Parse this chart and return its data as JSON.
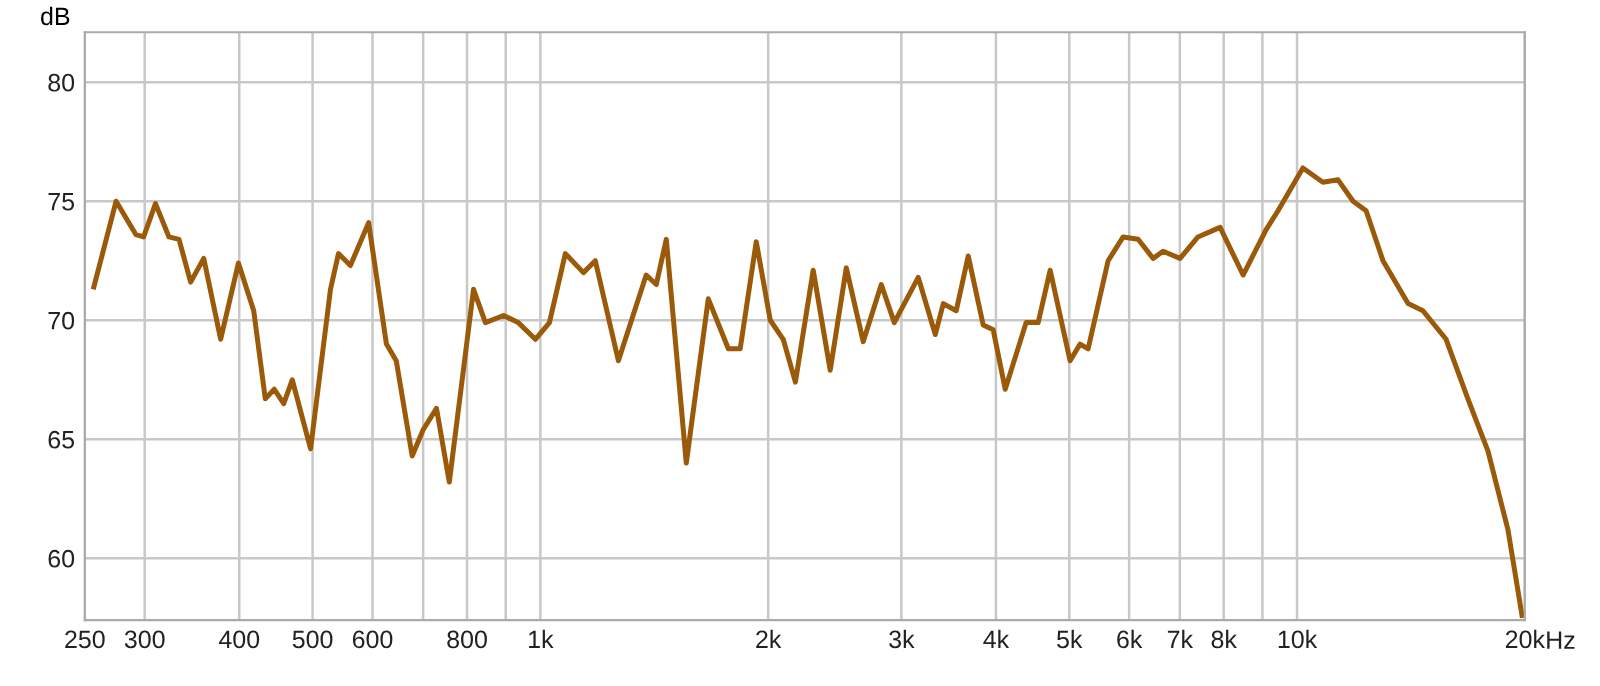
{
  "chart_data": {
    "type": "line",
    "ylabel": "dB",
    "log": "x",
    "grid": true,
    "marker": "none",
    "line_style": "solid",
    "xlim": [
      250,
      20000
    ],
    "ylim": [
      57.4,
      82.1
    ],
    "xticks": [
      250,
      300,
      400,
      500,
      600,
      {
        "value": 700,
        "label": null
      },
      800,
      {
        "value": 900,
        "label": null
      },
      {
        "value": 1000,
        "label": "1k"
      },
      {
        "value": 2000,
        "label": "2k"
      },
      {
        "value": 3000,
        "label": "3k"
      },
      {
        "value": 4000,
        "label": "4k"
      },
      {
        "value": 5000,
        "label": "5k"
      },
      {
        "value": 6000,
        "label": "6k"
      },
      {
        "value": 7000,
        "label": "7k"
      },
      {
        "value": 8000,
        "label": "8k"
      },
      {
        "value": 9000,
        "label": null
      },
      {
        "value": 10000,
        "label": "10k"
      },
      {
        "value": 20000,
        "label": "20k"
      }
    ],
    "xlabel": "Hz",
    "yticks": [
      60,
      65,
      70,
      75,
      80
    ],
    "series": [
      {
        "color": "#9a5a0a",
        "x": [
          257,
          275,
          292,
          299,
          310,
          323,
          333,
          345,
          359,
          378,
          399,
          418,
          433,
          445,
          458,
          470,
          497,
          528,
          541,
          561,
          593,
          626,
          645,
          677,
          700,
          729,
          758,
          816,
          846,
          894,
          935,
          985,
          1028,
          1079,
          1140,
          1182,
          1268,
          1380,
          1423,
          1467,
          1559,
          1667,
          1772,
          1837,
          1929,
          2013,
          2094,
          2173,
          2294,
          2416,
          2537,
          2671,
          2822,
          2936,
          3158,
          3326,
          3408,
          3545,
          3677,
          3848,
          3967,
          4115,
          4385,
          4549,
          4718,
          5013,
          5168,
          5296,
          5628,
          5891,
          6166,
          6454,
          6653,
          7006,
          7398,
          7913,
          8487,
          9100,
          9438,
          10180,
          10820,
          11330,
          11860,
          12340,
          12990,
          14020,
          14670,
          15740,
          16820,
          17880,
          19000,
          19830
        ],
        "values": [
          71.4,
          75.0,
          73.6,
          73.5,
          74.9,
          73.5,
          73.4,
          71.6,
          72.6,
          69.2,
          72.4,
          70.4,
          66.7,
          67.1,
          66.5,
          67.5,
          64.6,
          71.3,
          72.8,
          72.3,
          74.1,
          69.0,
          68.3,
          64.3,
          65.4,
          66.3,
          63.2,
          71.3,
          69.9,
          70.2,
          69.9,
          69.2,
          69.9,
          72.8,
          72.0,
          72.5,
          68.3,
          71.9,
          71.5,
          73.4,
          64.0,
          70.9,
          68.8,
          68.8,
          73.3,
          70.0,
          69.2,
          67.4,
          72.1,
          67.9,
          72.2,
          69.1,
          71.5,
          69.9,
          71.8,
          69.4,
          70.7,
          70.4,
          72.7,
          69.8,
          69.6,
          67.1,
          69.9,
          69.9,
          72.1,
          68.3,
          69.0,
          68.8,
          72.5,
          73.5,
          73.4,
          72.6,
          72.9,
          72.6,
          73.5,
          73.9,
          71.9,
          73.8,
          74.6,
          76.4,
          75.8,
          75.9,
          75.0,
          74.6,
          72.5,
          70.7,
          70.4,
          69.2,
          66.7,
          64.5,
          61.2,
          57.6
        ]
      }
    ]
  }
}
